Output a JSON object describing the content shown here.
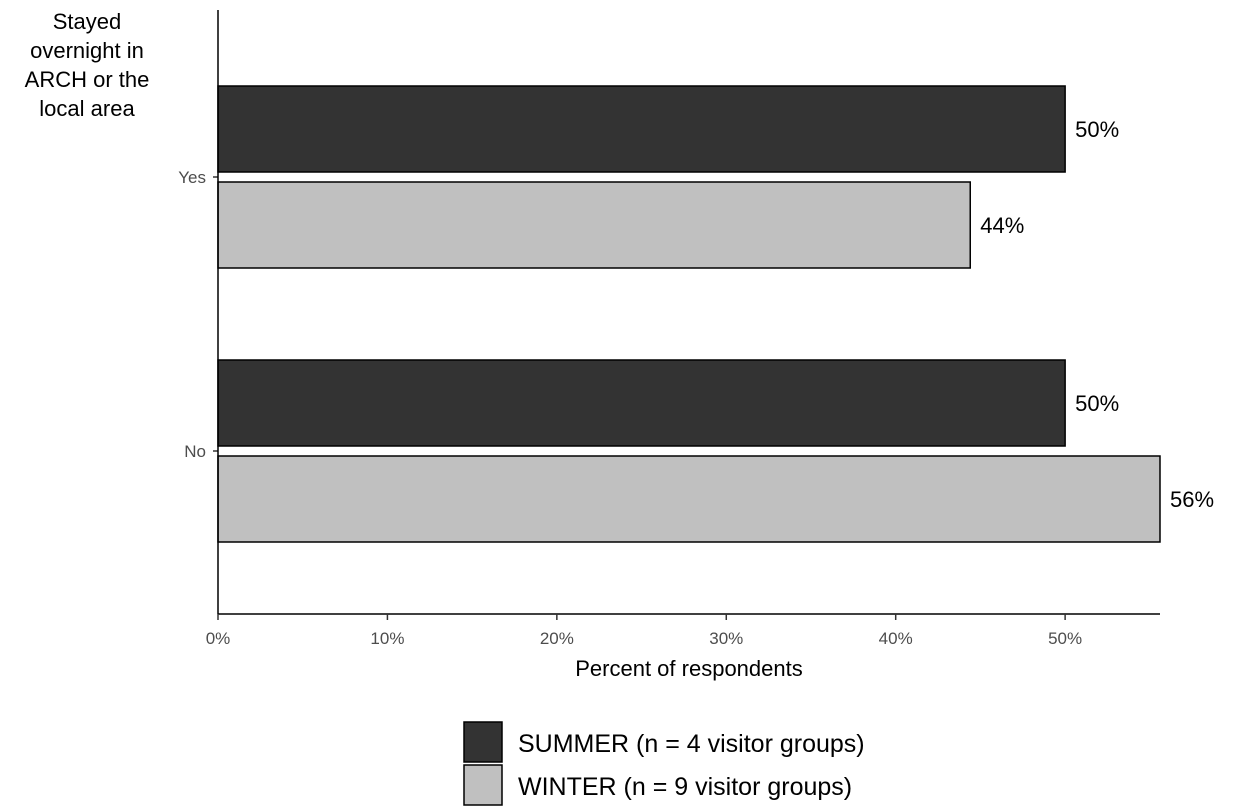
{
  "chart_data": {
    "type": "bar",
    "orientation": "horizontal",
    "ylabel": [
      "Stayed",
      "overnight in",
      "ARCH or the",
      "local area"
    ],
    "xlabel": "Percent of respondents",
    "categories": [
      "Yes",
      "No"
    ],
    "series": [
      {
        "name": "SUMMER (n = 4 visitor groups)",
        "values": [
          50,
          50
        ],
        "labels": [
          "50%",
          "50%"
        ],
        "color": "#333333"
      },
      {
        "name": "WINTER (n = 9 visitor groups)",
        "values": [
          44.4,
          55.6
        ],
        "labels": [
          "44%",
          "56%"
        ],
        "color": "#c0c0c0"
      }
    ],
    "xticks": [
      0,
      10,
      20,
      30,
      40,
      50
    ],
    "xtick_labels": [
      "0%",
      "10%",
      "20%",
      "30%",
      "40%",
      "50%"
    ],
    "xlim": [
      0,
      55.6
    ],
    "grid": false,
    "legend_position": "bottom"
  }
}
